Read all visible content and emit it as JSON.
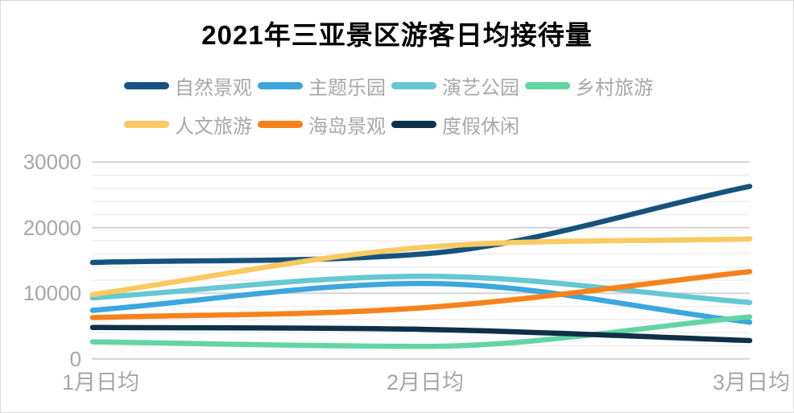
{
  "title": "2021年三亚景区游客日均接待量",
  "chart_data": {
    "type": "line",
    "smooth": true,
    "title": "2021年三亚景区游客日均接待量",
    "x_categories": [
      "1月日均",
      "2月日均",
      "3月日均"
    ],
    "series": [
      {
        "name": "自然景观",
        "color": "#16527E",
        "values": [
          14700,
          16000,
          26300
        ]
      },
      {
        "name": "主题乐园",
        "color": "#3CA7DC",
        "values": [
          7400,
          11500,
          5600
        ]
      },
      {
        "name": "演艺公园",
        "color": "#65C8D2",
        "values": [
          9300,
          12600,
          8600
        ]
      },
      {
        "name": "乡村旅游",
        "color": "#63D5A4",
        "values": [
          2600,
          1900,
          6400
        ]
      },
      {
        "name": "人文旅游",
        "color": "#F9CA61",
        "values": [
          9800,
          17000,
          18300
        ]
      },
      {
        "name": "海岛景观",
        "color": "#F6821C",
        "values": [
          6300,
          7800,
          13300
        ]
      },
      {
        "name": "度假休闲",
        "color": "#0E3049",
        "values": [
          4800,
          4500,
          2800
        ]
      }
    ],
    "y_ticks": [
      0,
      10000,
      20000,
      30000
    ],
    "ylim": [
      0,
      30000
    ],
    "minor_grid_step": 2000,
    "major_grid_step": 10000,
    "grid": "horizontal-only",
    "legend_position": "top",
    "colors": {
      "axis_label": "#a6a6a6",
      "legend_label": "#a8a8a8",
      "grid_minor": "#efefef",
      "grid_major": "#d4d4d4",
      "title": "#000000",
      "background": "#ffffff",
      "border": "#d8d8d8"
    }
  }
}
